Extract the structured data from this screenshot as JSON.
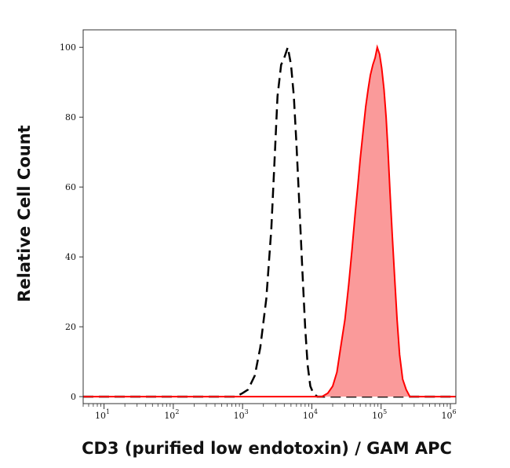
{
  "chart_data": {
    "type": "area",
    "xlabel": "CD3 (purified low endotoxin) / GAM APC",
    "ylabel": "Relative Cell Count",
    "x_scale": "log",
    "xlim": [
      5,
      1200000
    ],
    "ylim": [
      -2,
      105
    ],
    "y_ticks": [
      0,
      20,
      40,
      60,
      80,
      100
    ],
    "x_ticks": [
      {
        "value": 10,
        "base": "10",
        "exp": "1"
      },
      {
        "value": 100,
        "base": "10",
        "exp": "2"
      },
      {
        "value": 1000,
        "base": "10",
        "exp": "3"
      },
      {
        "value": 10000,
        "base": "10",
        "exp": "4"
      },
      {
        "value": 100000,
        "base": "10",
        "exp": "5"
      },
      {
        "value": 1000000,
        "base": "10",
        "exp": "6"
      }
    ],
    "grid": false,
    "legend": "none",
    "series": [
      {
        "style": "dashed",
        "color": "#000000",
        "points": [
          [
            5,
            0
          ],
          [
            800,
            0
          ],
          [
            1000,
            1
          ],
          [
            1200,
            2
          ],
          [
            1500,
            6
          ],
          [
            1800,
            14
          ],
          [
            2200,
            28
          ],
          [
            2600,
            48
          ],
          [
            2900,
            68
          ],
          [
            3200,
            86
          ],
          [
            3600,
            95
          ],
          [
            4000,
            97
          ],
          [
            4500,
            100
          ],
          [
            5000,
            95
          ],
          [
            5500,
            86
          ],
          [
            6000,
            72
          ],
          [
            6600,
            55
          ],
          [
            7300,
            36
          ],
          [
            8000,
            20
          ],
          [
            8700,
            9
          ],
          [
            9500,
            3
          ],
          [
            10500,
            1
          ],
          [
            12000,
            0
          ],
          [
            1200000,
            0
          ]
        ]
      },
      {
        "style": "filled",
        "color": "#ff0000",
        "fill": "#fa9a9a",
        "points": [
          [
            5,
            0
          ],
          [
            14000,
            0
          ],
          [
            17000,
            1
          ],
          [
            20000,
            3
          ],
          [
            23000,
            7
          ],
          [
            26000,
            14
          ],
          [
            30000,
            22
          ],
          [
            34000,
            32
          ],
          [
            38000,
            42
          ],
          [
            42000,
            52
          ],
          [
            46000,
            60
          ],
          [
            50000,
            68
          ],
          [
            55000,
            76
          ],
          [
            60000,
            83
          ],
          [
            65000,
            88
          ],
          [
            70000,
            92
          ],
          [
            76000,
            95
          ],
          [
            82000,
            97
          ],
          [
            88000,
            100
          ],
          [
            95000,
            98
          ],
          [
            102000,
            94
          ],
          [
            110000,
            88
          ],
          [
            118000,
            80
          ],
          [
            126000,
            70
          ],
          [
            135000,
            58
          ],
          [
            145000,
            46
          ],
          [
            157000,
            34
          ],
          [
            170000,
            22
          ],
          [
            185000,
            12
          ],
          [
            205000,
            5
          ],
          [
            230000,
            2
          ],
          [
            260000,
            0
          ],
          [
            1200000,
            0
          ]
        ]
      }
    ]
  }
}
